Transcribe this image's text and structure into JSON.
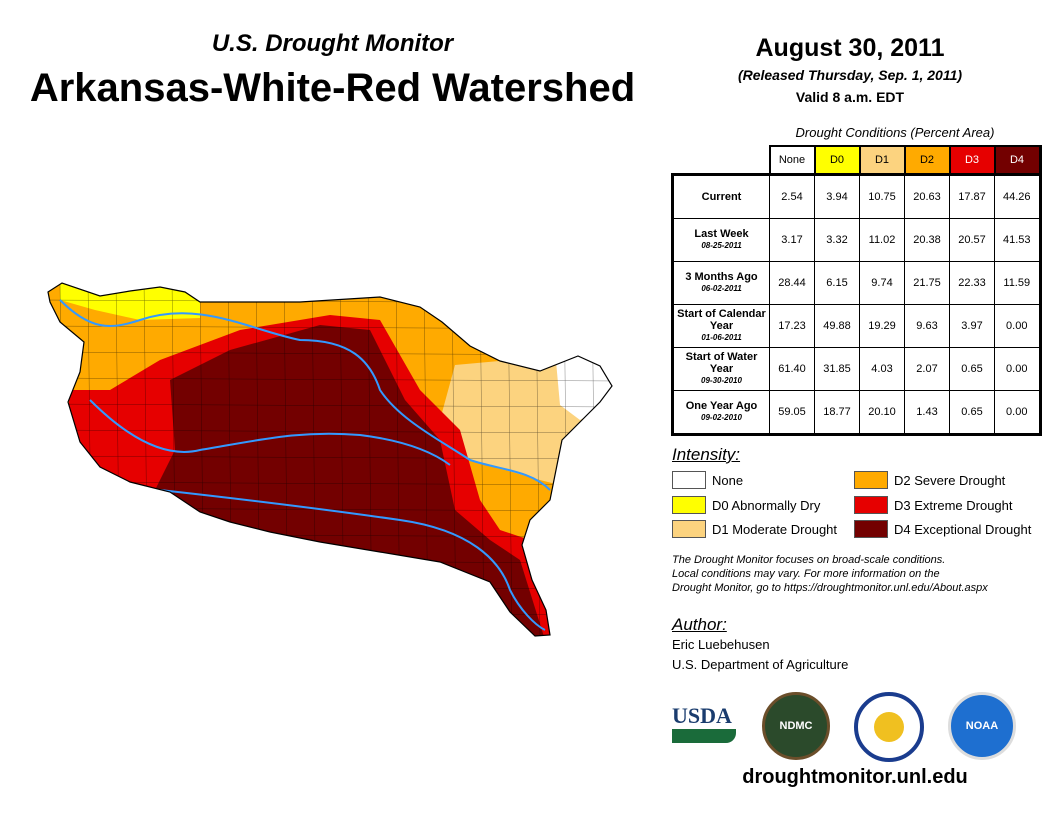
{
  "header": {
    "subtitle": "U.S. Drought Monitor",
    "title": "Arkansas-White-Red Watershed",
    "date": "August 30, 2011",
    "released": "(Released Thursday, Sep. 1, 2011)",
    "valid": "Valid 8 a.m. EDT"
  },
  "table": {
    "caption": "Drought Conditions (Percent Area)",
    "columns": [
      "None",
      "D0",
      "D1",
      "D2",
      "D3",
      "D4"
    ],
    "rows": [
      {
        "label": "Current",
        "date": "",
        "values": [
          "2.54",
          "3.94",
          "10.75",
          "20.63",
          "17.87",
          "44.26"
        ]
      },
      {
        "label": "Last Week",
        "date": "08-25-2011",
        "values": [
          "3.17",
          "3.32",
          "11.02",
          "20.38",
          "20.57",
          "41.53"
        ]
      },
      {
        "label": "3 Months Ago",
        "date": "06-02-2011",
        "values": [
          "28.44",
          "6.15",
          "9.74",
          "21.75",
          "22.33",
          "11.59"
        ]
      },
      {
        "label": "Start of Calendar Year",
        "date": "01-06-2011",
        "values": [
          "17.23",
          "49.88",
          "19.29",
          "9.63",
          "3.97",
          "0.00"
        ]
      },
      {
        "label": "Start of Water Year",
        "date": "09-30-2010",
        "values": [
          "61.40",
          "31.85",
          "4.03",
          "2.07",
          "0.65",
          "0.00"
        ]
      },
      {
        "label": "One Year Ago",
        "date": "09-02-2010",
        "values": [
          "59.05",
          "18.77",
          "20.10",
          "1.43",
          "0.65",
          "0.00"
        ]
      }
    ]
  },
  "colors": {
    "none": "#ffffff",
    "d0": "#ffff00",
    "d1": "#fcd37f",
    "d2": "#ffaa00",
    "d3": "#e60000",
    "d4": "#730000",
    "river": "#3399ff"
  },
  "legend": {
    "title": "Intensity:",
    "items": [
      "None",
      "D0 Abnormally Dry",
      "D1 Moderate Drought",
      "D2 Severe Drought",
      "D3 Extreme Drought",
      "D4 Exceptional Drought"
    ]
  },
  "note": [
    "The Drought Monitor focuses on broad-scale conditions.",
    "Local conditions may vary. For more information on the",
    "Drought Monitor, go to https://droughtmonitor.unl.edu/About.aspx"
  ],
  "author": {
    "title": "Author:",
    "name": "Eric Luebehusen",
    "org": "U.S. Department of Agriculture"
  },
  "logos": {
    "usda": "USDA",
    "ndmc": "NDMC",
    "noaa": "NOAA"
  },
  "footer": {
    "url": "droughtmonitor.unl.edu"
  }
}
